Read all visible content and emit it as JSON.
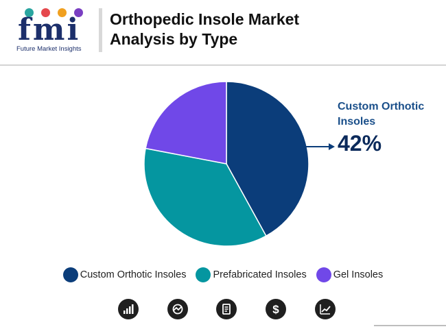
{
  "header": {
    "logo_text": "fmi",
    "logo_caption": "Future Market Insights",
    "logo_dot_colors": [
      "#2aa5a0",
      "#e5484d",
      "#f0a020",
      "#7a3fc2"
    ],
    "title": "Orthopedic Insole Market Analysis by Type"
  },
  "chart_data": {
    "type": "pie",
    "title": "Orthopedic Insole Market Analysis by Type",
    "categories": [
      "Custom Orthotic Insoles",
      "Prefabricated Insoles",
      "Gel Insoles"
    ],
    "values": [
      42,
      36,
      22
    ],
    "unit": "%",
    "colors": [
      "#0b3d7a",
      "#0596a0",
      "#7048e8"
    ],
    "start_angle_deg": 0,
    "direction": "clockwise",
    "legend_position": "bottom"
  },
  "callout": {
    "label": "Custom Orthotic Insoles",
    "value": "42%",
    "arrow_color": "#0b3d7a"
  },
  "footer_icons": [
    "bar-chart-icon",
    "gauge-icon",
    "report-icon",
    "dollar-icon",
    "trend-chart-icon"
  ]
}
